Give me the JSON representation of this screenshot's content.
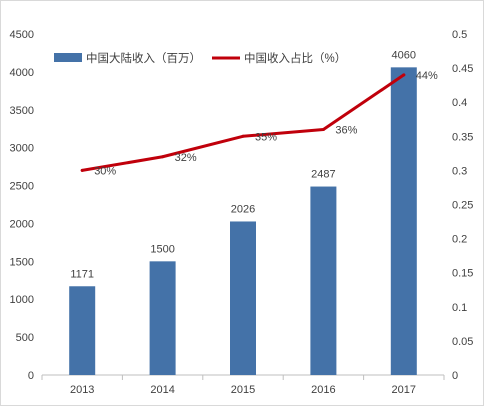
{
  "chart_data": {
    "type": "bar",
    "categories": [
      "2013",
      "2014",
      "2015",
      "2016",
      "2017"
    ],
    "series": [
      {
        "name": "中国大陆收入（百万）",
        "type": "bar",
        "axis": "left",
        "color": "#4472a8",
        "values": [
          1171,
          1500,
          2026,
          2487,
          4060
        ],
        "data_labels": [
          "1171",
          "1500",
          "2026",
          "2487",
          "4060"
        ]
      },
      {
        "name": "中国收入占比（%）",
        "type": "line",
        "axis": "right",
        "color": "#c0000b",
        "values": [
          0.3,
          0.32,
          0.35,
          0.36,
          0.44
        ],
        "data_labels": [
          "30%",
          "32%",
          "35%",
          "36%",
          "44%"
        ]
      }
    ],
    "ylim": [
      0,
      4500
    ],
    "yticks": [
      "0",
      "500",
      "1000",
      "1500",
      "2000",
      "2500",
      "3000",
      "3500",
      "4000",
      "4500"
    ],
    "y2lim": [
      0,
      0.5
    ],
    "y2ticks": [
      "0",
      "0.05",
      "0.1",
      "0.15",
      "0.2",
      "0.25",
      "0.3",
      "0.35",
      "0.4",
      "0.45",
      "0.5"
    ],
    "legend_position": "top-left",
    "grid": false
  }
}
